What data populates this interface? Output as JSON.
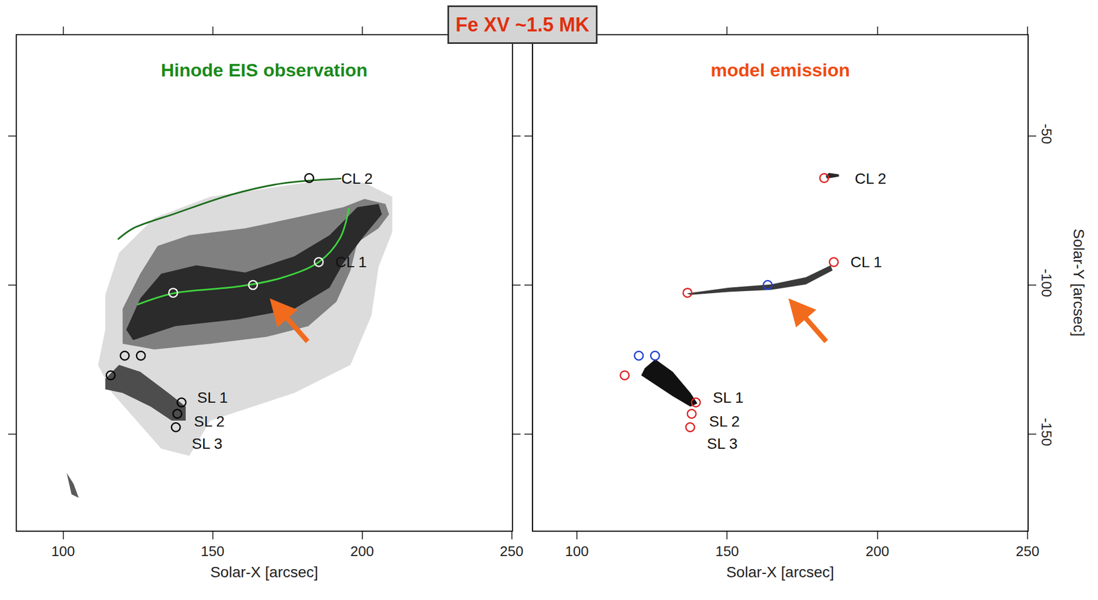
{
  "title": "Fe XV ~1.5 MK",
  "ylabel": "Solar-Y [arcsec]",
  "chart_data": [
    {
      "type": "scatter",
      "title": "Hinode EIS observation",
      "title_color": "#1a8a1a",
      "xlabel": "Solar-X [arcsec]",
      "xlim": [
        84.5,
        250
      ],
      "ylim": [
        -182.4,
        -16.2
      ],
      "xticks": [
        100,
        150,
        200,
        250
      ],
      "yticks": [
        -50,
        -100,
        -150
      ],
      "tick_labels": "x",
      "regions": [
        {
          "color": "#dcdcdc",
          "x": [
            114.1,
            114.1,
            118.7,
            130.5,
            149.2,
            172.7,
            189.1,
            200.8,
            210.1,
            210.1,
            205.5,
            203.1,
            196.1,
            177.3,
            149.2,
            142.2,
            132.8,
            116.4,
            111.7
          ],
          "y": [
            -115.0,
            -103.3,
            -89.2,
            -77.5,
            -70.4,
            -66.9,
            -64.6,
            -65.7,
            -70.4,
            -82.2,
            -93.9,
            -110.3,
            -126.8,
            -136.2,
            -145.5,
            -157.3,
            -154.9,
            -136.2,
            -126.8
          ]
        },
        {
          "color": "#808080",
          "x": [
            119.9,
            119.9,
            125.8,
            131.6,
            142.2,
            160.9,
            177.3,
            193.7,
            200.8,
            207.8,
            209.0,
            205.5,
            198.4,
            196.1,
            191.4,
            182.0,
            168.0,
            149.2,
            130.5
          ],
          "y": [
            -119.7,
            -108.0,
            -96.2,
            -86.9,
            -83.3,
            -81.0,
            -77.5,
            -73.9,
            -71.1,
            -72.8,
            -76.3,
            -81.0,
            -85.7,
            -95.1,
            -105.6,
            -113.8,
            -117.4,
            -119.7,
            -121.6
          ]
        },
        {
          "color": "#2b2b2b",
          "x": [
            121.1,
            125.8,
            132.8,
            144.5,
            160.9,
            177.3,
            189.1,
            198.4,
            205.5,
            206.6,
            200.8,
            193.7,
            189.1,
            177.3,
            158.6,
            137.5,
            123.4
          ],
          "y": [
            -115.0,
            -104.5,
            -96.2,
            -93.4,
            -95.8,
            -90.4,
            -83.3,
            -73.9,
            -72.8,
            -76.3,
            -83.3,
            -92.7,
            -100.9,
            -108.0,
            -111.5,
            -113.8,
            -118.5
          ]
        },
        {
          "color": "#4d4d4d",
          "x": [
            114.1,
            118.7,
            125.8,
            135.2,
            141.0,
            141.0,
            136.3,
            129.3,
            119.9,
            114.1
          ],
          "y": [
            -131.5,
            -126.8,
            -129.1,
            -136.2,
            -140.8,
            -145.5,
            -145.5,
            -140.8,
            -136.2,
            -135.0
          ]
        },
        {
          "color": "#5a5a5a",
          "x": [
            101.2,
            103.5,
            105.2,
            102.8
          ],
          "y": [
            -163.1,
            -166.7,
            -171.4,
            -170.2
          ]
        }
      ],
      "lines": [
        {
          "color": "#1e6e1e",
          "x": [
            118.3,
            123.4,
            137.5,
            156.2,
            172.7,
            193.0
          ],
          "y": [
            -84.7,
            -81.0,
            -76.0,
            -69.7,
            -66.0,
            -64.3
          ]
        },
        {
          "color": "#3ed43e",
          "x": [
            124.8,
            136.8,
            158.6,
            172.7,
            185.5,
            192.6,
            195.6
          ],
          "y": [
            -106.6,
            -102.8,
            -100.5,
            -97.7,
            -92.3,
            -84.3,
            -74.2
          ]
        }
      ],
      "points": [
        {
          "color": "#000000",
          "marker": "circle-open",
          "x": [
            182.3,
            120.6,
            126.0,
            115.9,
            139.6,
            138.2,
            137.7
          ],
          "y": [
            -64.1,
            -123.7,
            -123.7,
            -130.3,
            -139.4,
            -143.2,
            -147.7
          ]
        },
        {
          "color": "#ffffff",
          "marker": "circle-open",
          "x": [
            136.8,
            163.5,
            185.5
          ],
          "y": [
            -102.6,
            -100.0,
            -92.3
          ]
        }
      ],
      "labels": [
        {
          "text": "CL 2",
          "x": 192.6,
          "y": -64.3
        },
        {
          "text": "CL 1",
          "x": 190.7,
          "y": -92.3
        },
        {
          "text": "SL 1",
          "x": 144.5,
          "y": -137.8
        },
        {
          "text": "SL 2",
          "x": 143.4,
          "y": -145.8
        },
        {
          "text": "SL 3",
          "x": 142.7,
          "y": -153.3
        }
      ],
      "arrow": {
        "x": 169.1,
        "y": -104.5,
        "tail_x": 182.0,
        "tail_y": -119.2,
        "color": "#f26b1d"
      }
    },
    {
      "type": "scatter",
      "title": "model emission",
      "title_color": "#f04a10",
      "xlabel": "Solar-X [arcsec]",
      "xlim": [
        85.3,
        250
      ],
      "ylim": [
        -182.4,
        -16.2
      ],
      "xticks": [
        100,
        150,
        200,
        250
      ],
      "yticks": [
        -50,
        -100,
        -150
      ],
      "tick_labels": true,
      "regions": [
        {
          "color": "#3a3a3a",
          "x": [
            136.6,
            150.6,
            164.6,
            176.2,
            184.4,
            185.1,
            176.2,
            164.6,
            150.6,
            137.8
          ],
          "y": [
            -102.8,
            -100.9,
            -99.8,
            -97.4,
            -93.4,
            -95.1,
            -99.8,
            -101.6,
            -102.3,
            -103.3
          ]
        },
        {
          "color": "#2a2a2a",
          "x": [
            182.8,
            183.9,
            187.2,
            187.2,
            183.2
          ],
          "y": [
            -63.4,
            -62.4,
            -62.9,
            -63.6,
            -64.3
          ]
        },
        {
          "color": "#111111",
          "x": [
            122.6,
            126.1,
            131.9,
            137.8,
            140.1,
            137.8,
            131.9,
            124.9,
            121.4
          ],
          "y": [
            -127.9,
            -124.9,
            -129.1,
            -136.2,
            -139.7,
            -140.8,
            -137.3,
            -132.6,
            -130.3
          ]
        }
      ],
      "points": [
        {
          "color": "#e02020",
          "marker": "circle-open",
          "x": [
            182.3,
            136.8,
            185.5,
            115.9,
            139.6,
            138.2,
            137.7
          ],
          "y": [
            -64.1,
            -102.6,
            -92.3,
            -130.3,
            -139.4,
            -143.2,
            -147.7
          ]
        },
        {
          "color": "#1f3fd0",
          "marker": "circle-open",
          "x": [
            163.5,
            120.6,
            126.0
          ],
          "y": [
            -100.0,
            -123.7,
            -123.7
          ]
        }
      ],
      "labels": [
        {
          "text": "CL 2",
          "x": 192.1,
          "y": -64.3
        },
        {
          "text": "CL 1",
          "x": 190.7,
          "y": -92.3
        },
        {
          "text": "SL 1",
          "x": 144.8,
          "y": -137.8
        },
        {
          "text": "SL 2",
          "x": 143.6,
          "y": -145.8
        },
        {
          "text": "SL 3",
          "x": 142.9,
          "y": -153.3
        }
      ],
      "arrow": {
        "x": 170.4,
        "y": -104.5,
        "tail_x": 183.2,
        "tail_y": -119.2,
        "color": "#f26b1d"
      }
    }
  ]
}
